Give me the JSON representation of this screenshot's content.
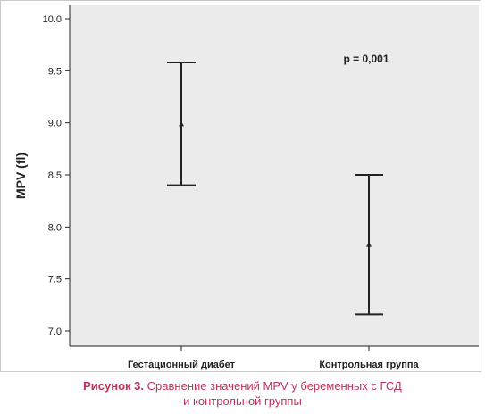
{
  "chart_data": {
    "type": "errorbar",
    "ylabel": "MPV (fl)",
    "xlabel": "",
    "ylim": [
      7.0,
      10.0
    ],
    "yticks": [
      "10.0",
      "9.5",
      "9.0",
      "8.5",
      "8.0",
      "7.5",
      "7.0"
    ],
    "categories": [
      "Гестационный диабет",
      "Контрольная группа"
    ],
    "points": [
      {
        "category": "Гестационный диабет",
        "mean": 8.99,
        "lower": 8.4,
        "upper": 9.58
      },
      {
        "category": "Контрольная группа",
        "mean": 7.83,
        "lower": 7.16,
        "upper": 8.5
      }
    ],
    "annotation": "p = 0,001",
    "grid": false,
    "background": "#ebebeb",
    "line_color": "#222222"
  },
  "caption": {
    "label": "Рисунок 3.",
    "line1": "Сравнение значений MPV у беременных с ГСД",
    "line2": "и контрольной группы",
    "color": "#c0325a"
  }
}
